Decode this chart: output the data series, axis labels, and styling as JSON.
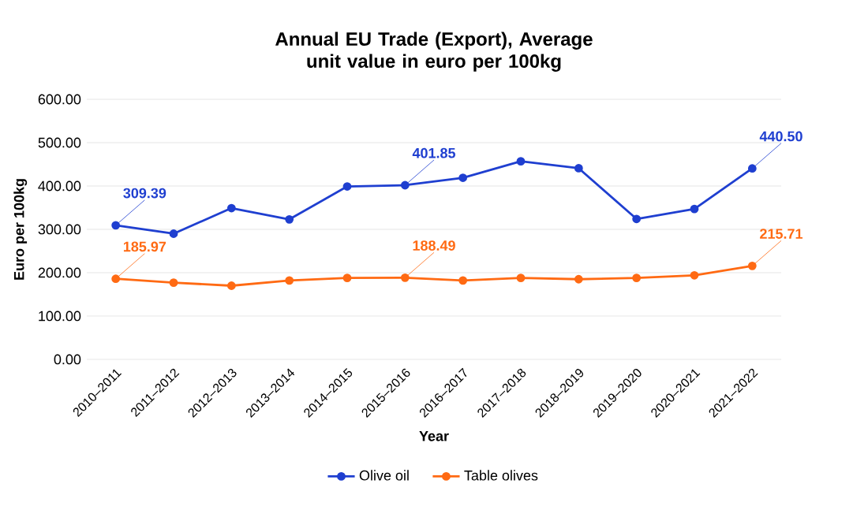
{
  "chart_data": {
    "type": "line",
    "title": "Annual EU Trade (Export), Average unit value in euro per 100kg",
    "xlabel": "Year",
    "ylabel": "Euro per 100kg",
    "categories": [
      "2010–2011",
      "2011–2012",
      "2012–2013",
      "2013–2014",
      "2014–2015",
      "2015–2016",
      "2016–2017",
      "2017–2018",
      "2018–2019",
      "2019–2020",
      "2020–2021",
      "2021–2022"
    ],
    "series": [
      {
        "name": "Olive oil",
        "color": "#1f3fd0",
        "values": [
          309.39,
          290,
          349,
          323,
          399,
          401.85,
          419,
          457,
          441,
          324,
          347,
          440.5
        ],
        "value_labels": [
          "309.39",
          null,
          null,
          null,
          null,
          "401.85",
          null,
          null,
          null,
          null,
          null,
          "440.50"
        ]
      },
      {
        "name": "Table olives",
        "color": "#ff6a13",
        "values": [
          185.97,
          177,
          170,
          182,
          188,
          188.49,
          182,
          188,
          185,
          188,
          194,
          215.71
        ],
        "value_labels": [
          "185.97",
          null,
          null,
          null,
          null,
          "188.49",
          null,
          null,
          null,
          null,
          null,
          "215.71"
        ]
      }
    ],
    "ylim": [
      0,
      600
    ],
    "yticks": [
      {
        "value": 0,
        "label": "0.00"
      },
      {
        "value": 100,
        "label": "100.00"
      },
      {
        "value": 200,
        "label": "200.00"
      },
      {
        "value": 300,
        "label": "300.00"
      },
      {
        "value": 400,
        "label": "400.00"
      },
      {
        "value": 500,
        "label": "500.00"
      },
      {
        "value": 600,
        "label": "600.00"
      }
    ],
    "grid": "y",
    "legend": "bottom",
    "marker": "circle",
    "line_style": "solid"
  }
}
